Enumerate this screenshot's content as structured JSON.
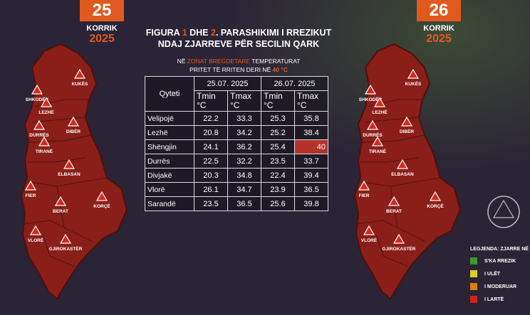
{
  "header_left": {
    "day": "25",
    "month": "KORRIK",
    "year": "2025"
  },
  "header_right": {
    "day": "26",
    "month": "KORRIK",
    "year": "2025"
  },
  "title_line1": [
    "FIGURA ",
    "1",
    " DHE ",
    "2",
    ". PARASHIKIMI I RREZIKUT"
  ],
  "title_line2": "NDAJ ZJARREVE PËR SECILIN QARK",
  "subtitle_line1": [
    "NË ",
    "ZONAT BREGDETARE",
    " TEMPERATURAT"
  ],
  "subtitle_line2": [
    "PRITET TË RRITEN DERI NË ",
    "40 °C"
  ],
  "table": {
    "city_header": "Qyteti",
    "dates": [
      "25.07. 2025",
      "26.07. 2025"
    ],
    "subheaders": [
      "Tmin °C",
      "Tmax °C",
      "Tmin °C",
      "Tmax °C"
    ],
    "rows": [
      [
        "Velipojë",
        "22.2",
        "33.3",
        "25.3",
        "35.8"
      ],
      [
        "Lezhë",
        "20.8",
        "34.2",
        "25.2",
        "38.4"
      ],
      [
        "Shëngjin",
        "24.1",
        "36.2",
        "25.4",
        "40"
      ],
      [
        "Durrës",
        "22.5",
        "32.2",
        "23.5",
        "33.7"
      ],
      [
        "Divjakë",
        "20.3",
        "34.8",
        "22.4",
        "39.4"
      ],
      [
        "Vlorë",
        "26.1",
        "34.7",
        "23.9",
        "36.5"
      ],
      [
        "Sarandë",
        "23.5",
        "36.5",
        "25.6",
        "39.8"
      ]
    ],
    "highlight_cell": [
      2,
      4
    ],
    "highlight_color": "#b3322a"
  },
  "regions": [
    "SHKODËR",
    "KUKËS",
    "LEZHË",
    "DIBËR",
    "DURRËS",
    "TIRANË",
    "ELBASAN",
    "FIER",
    "BERAT",
    "KORÇË",
    "VLORË",
    "GJIROKASTËR"
  ],
  "legend": {
    "title": "LEGJENDA: ZJARRE NË",
    "items": [
      {
        "label": "S'KA RREZIK",
        "color": "#3a9a2a"
      },
      {
        "label": "I ULËT",
        "color": "#d8d020"
      },
      {
        "label": "I MODERUAR",
        "color": "#e07a10"
      },
      {
        "label": "I LARTË",
        "color": "#d8201a"
      }
    ]
  }
}
